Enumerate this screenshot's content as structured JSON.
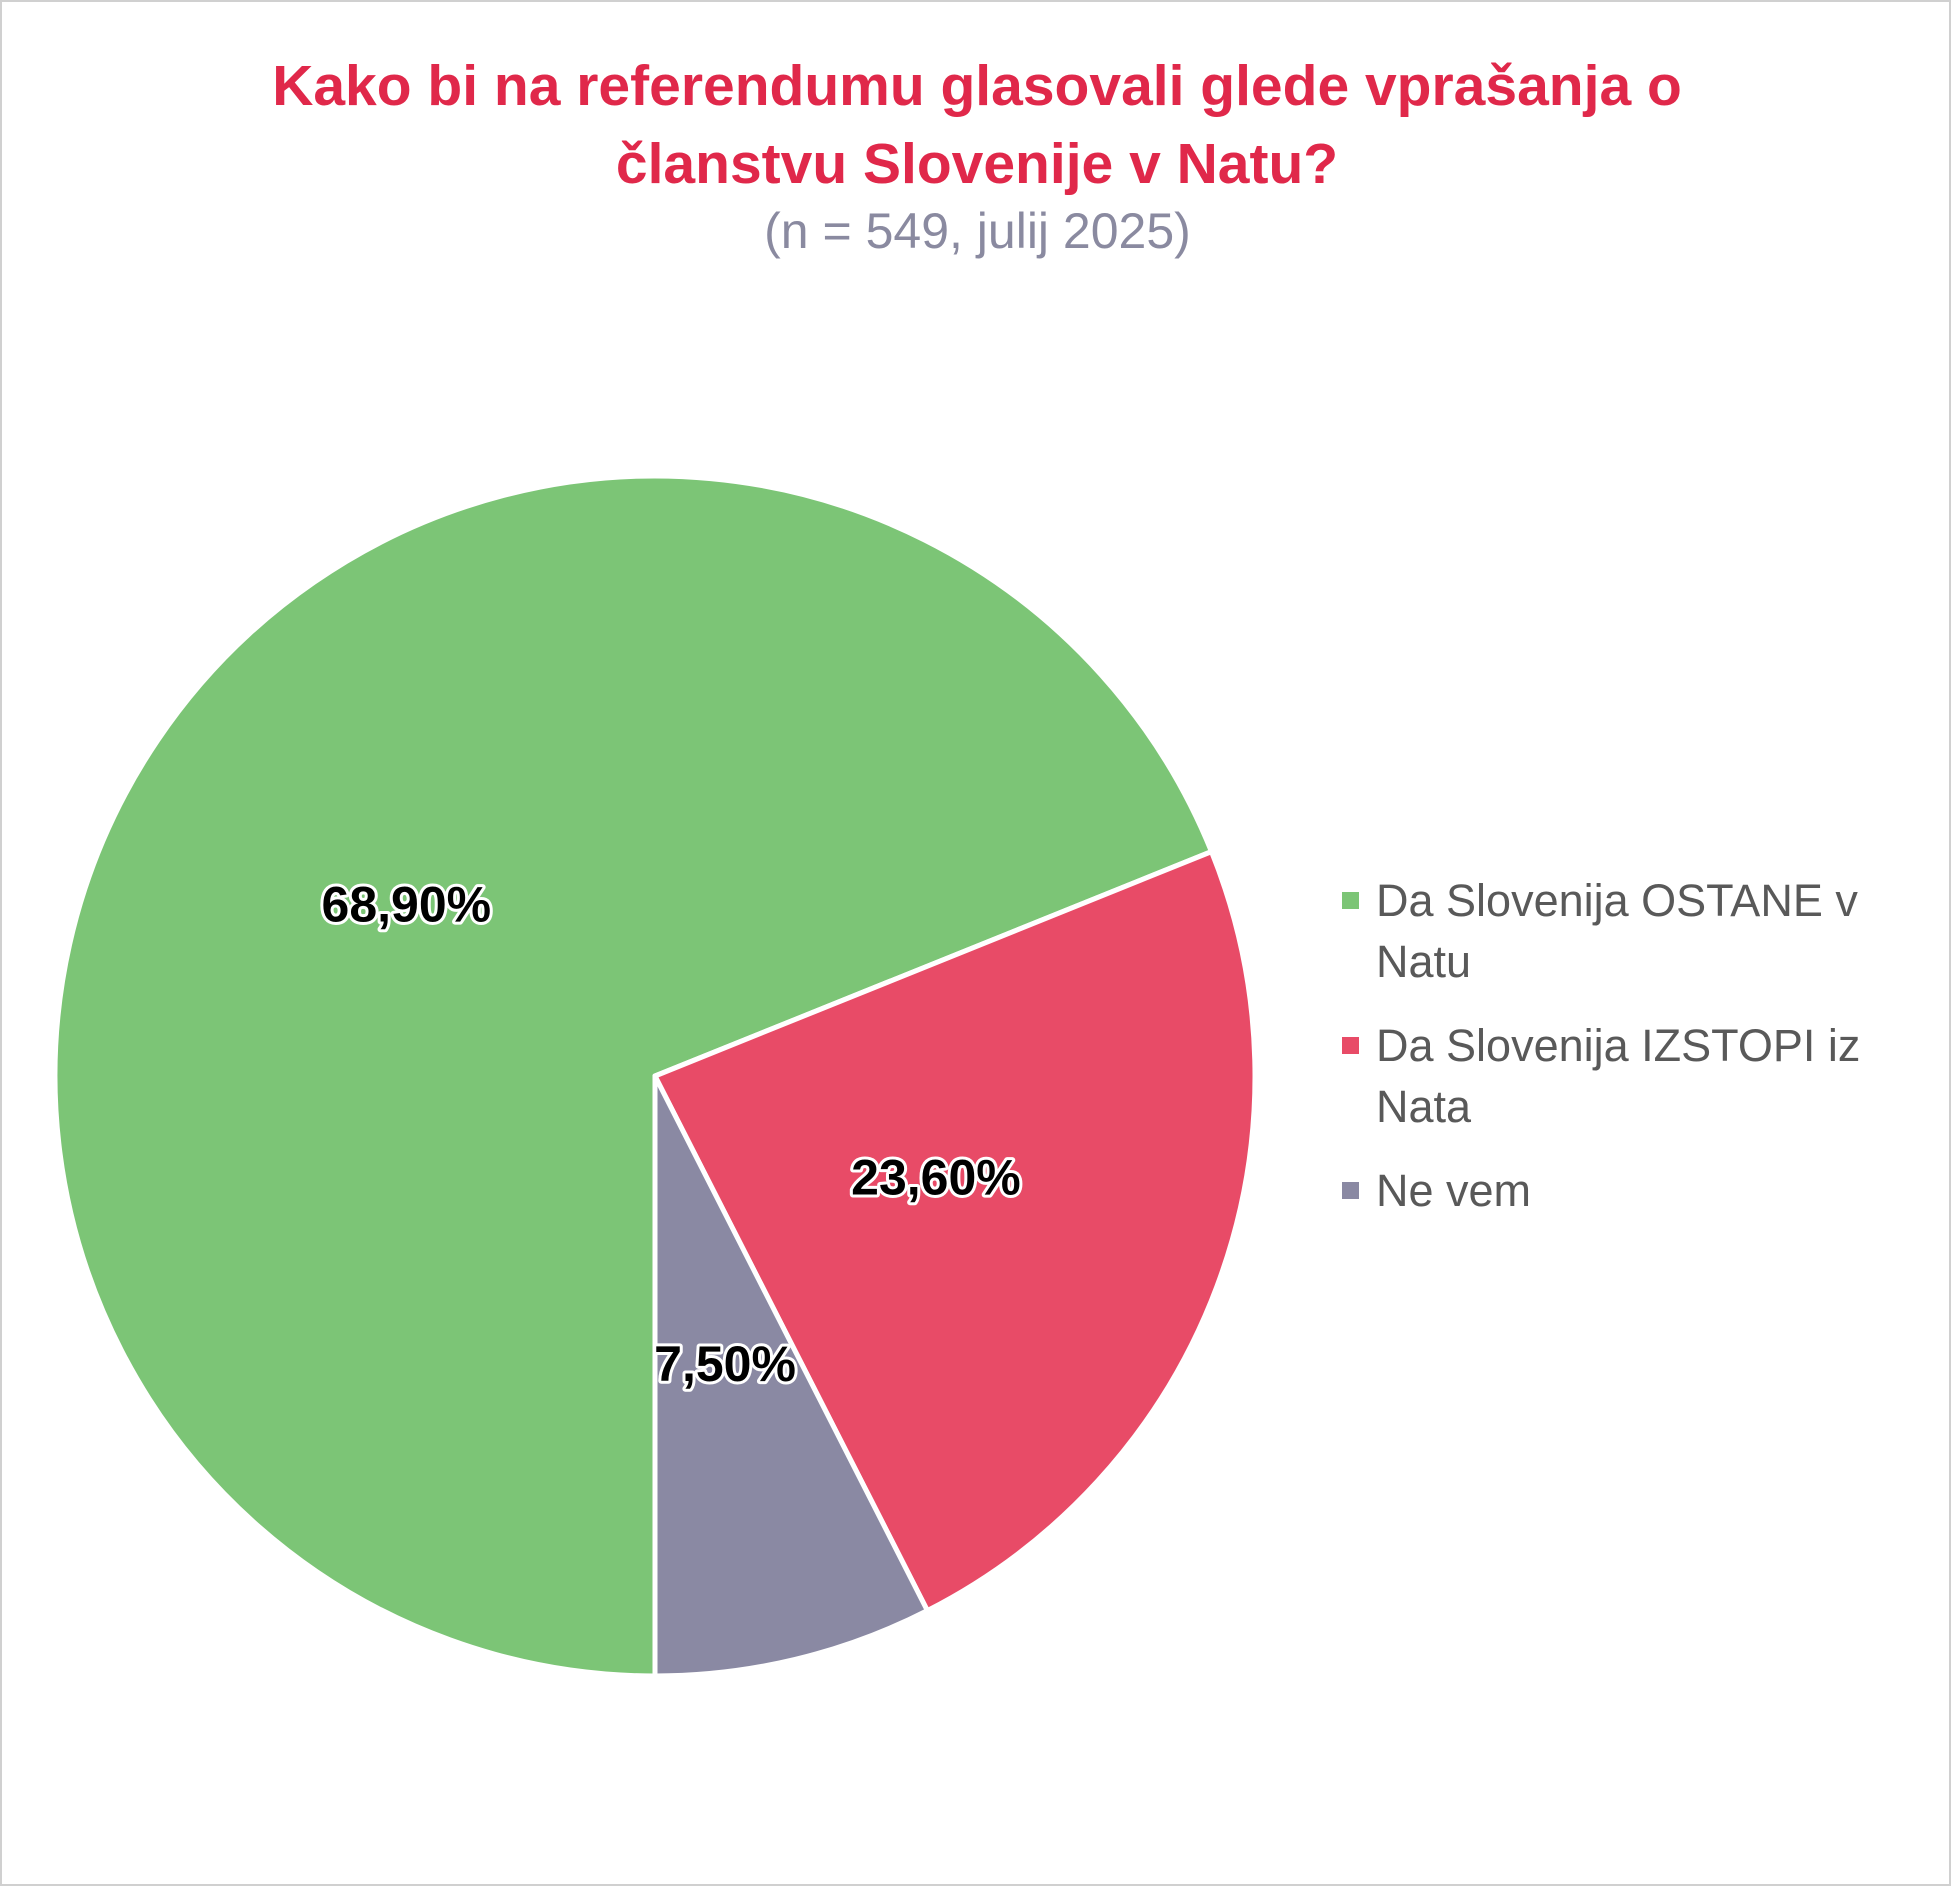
{
  "chart_data": {
    "type": "pie",
    "title": "Kako bi na referendumu glasovali glede vprašanja o članstvu Slovenije v Natu?",
    "subtitle": "(n = 549, julij 2025)",
    "start_angle": 180,
    "categories": [
      "Da Slovenija OSTANE v Natu",
      "Da Slovenija IZSTOPI iz Nata",
      "Ne vem"
    ],
    "values": [
      68.9,
      23.6,
      7.5
    ],
    "value_labels": [
      "68,90%",
      "23,60%",
      "7,50%"
    ],
    "colors": [
      "#7cc576",
      "#e84b67",
      "#8a89a3"
    ],
    "legend": "right"
  }
}
